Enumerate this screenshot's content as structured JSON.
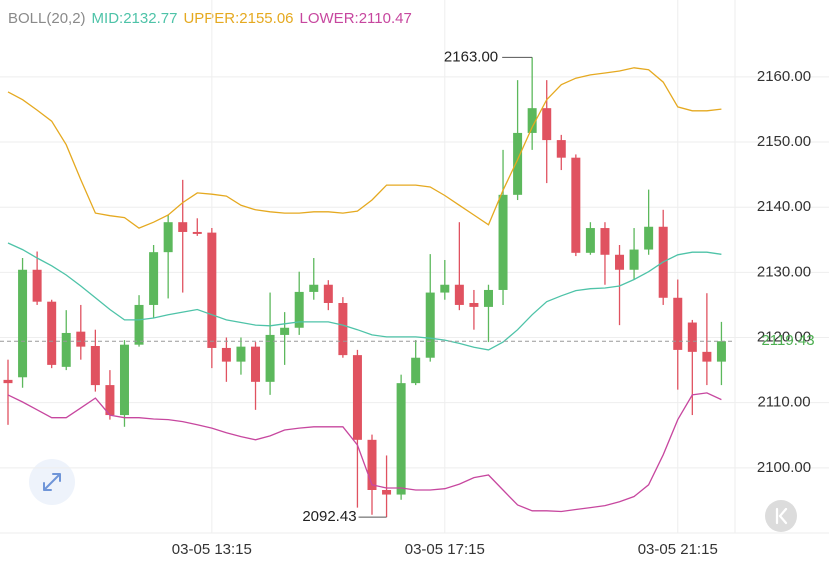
{
  "chart_data": {
    "type": "candlestick",
    "indicator": {
      "title": "BOLL(20,2)",
      "series": [
        {
          "name": "MID:2132.77",
          "color": "#4ec3a8",
          "values": [
            2134.5,
            2133.5,
            2132.2,
            2131.0,
            2129.6,
            2127.9,
            2126.1,
            2124.3,
            2122.7,
            2122.7,
            2123.0,
            2123.5,
            2123.9,
            2124.3,
            2123.5,
            2122.7,
            2122.3,
            2121.9,
            2121.8,
            2122.1,
            2122.4,
            2122.4,
            2122.4,
            2121.9,
            2121.2,
            2120.4,
            2120.1,
            2120.1,
            2120.1,
            2119.9,
            2119.6,
            2119.1,
            2118.5,
            2118.1,
            2119.3,
            2121.2,
            2123.5,
            2125.5,
            2126.4,
            2127.2,
            2127.5,
            2127.6,
            2127.9,
            2128.9,
            2130.1,
            2131.6,
            2132.7,
            2133.1,
            2133.1,
            2132.77
          ]
        },
        {
          "name": "UPPER:2155.06",
          "color": "#e5a920",
          "values": [
            2157.7,
            2156.5,
            2154.9,
            2153.2,
            2149.6,
            2144.2,
            2139.1,
            2138.7,
            2138.4,
            2136.8,
            2137.7,
            2138.8,
            2140.7,
            2142.2,
            2142.0,
            2141.7,
            2140.3,
            2139.6,
            2139.3,
            2139.1,
            2139.1,
            2139.3,
            2139.3,
            2139.1,
            2139.4,
            2141.1,
            2143.4,
            2143.4,
            2143.4,
            2143.1,
            2141.8,
            2140.3,
            2138.8,
            2137.3,
            2142.6,
            2147.3,
            2152.3,
            2156.5,
            2158.8,
            2159.8,
            2160.3,
            2160.6,
            2160.9,
            2161.4,
            2161.1,
            2159.2,
            2155.4,
            2154.8,
            2154.8,
            2155.06
          ]
        },
        {
          "name": "LOWER:2110.47",
          "color": "#c7479f",
          "values": [
            2111.2,
            2110.1,
            2108.9,
            2107.7,
            2107.7,
            2109.2,
            2110.7,
            2108.1,
            2107.7,
            2107.7,
            2107.5,
            2107.4,
            2107.1,
            2106.6,
            2106.1,
            2105.4,
            2104.8,
            2104.3,
            2104.9,
            2105.8,
            2106.1,
            2106.3,
            2106.3,
            2106.3,
            2103.5,
            2097.4,
            2096.9,
            2096.9,
            2096.6,
            2096.6,
            2096.8,
            2097.5,
            2098.5,
            2098.9,
            2096.6,
            2094.3,
            2093.4,
            2093.4,
            2093.3,
            2093.6,
            2093.9,
            2094.2,
            2094.8,
            2095.6,
            2097.4,
            2102.0,
            2107.4,
            2111.2,
            2111.5,
            2110.47
          ]
        }
      ]
    },
    "categories": [
      null,
      null,
      null,
      null,
      null,
      null,
      null,
      null,
      null,
      null,
      null,
      null,
      null,
      null,
      "03-05 13:15",
      null,
      null,
      null,
      null,
      null,
      null,
      null,
      null,
      null,
      null,
      null,
      null,
      null,
      null,
      null,
      "03-05 17:15",
      null,
      null,
      null,
      null,
      null,
      null,
      null,
      null,
      null,
      null,
      null,
      null,
      null,
      null,
      null,
      "03-05 21:15",
      null,
      null,
      null
    ],
    "open": [
      2113.5,
      2113.9,
      2130.4,
      2125.5,
      2115.5,
      2120.9,
      2118.7,
      2112.7,
      2108.1,
      2118.9,
      2125.0,
      2133.1,
      2137.7,
      2136.2,
      2136.1,
      2118.4,
      2116.3,
      2118.6,
      2113.2,
      2120.4,
      2121.5,
      2127.0,
      2128.1,
      2125.3,
      2117.3,
      2104.3,
      2096.6,
      2095.9,
      2113.0,
      2116.9,
      2126.9,
      2128.1,
      2125.3,
      2124.7,
      2127.3,
      2141.9,
      2151.4,
      2155.2,
      2150.3,
      2147.6,
      2133.0,
      2136.8,
      2132.7,
      2130.4,
      2133.5,
      2137.0,
      2126.1,
      2122.3,
      2117.8,
      2116.3
    ],
    "high": [
      2116.6,
      2132.2,
      2133.2,
      2125.8,
      2124.2,
      2125.0,
      2121.2,
      2115.0,
      2119.6,
      2126.5,
      2134.2,
      2138.8,
      2144.2,
      2138.3,
      2136.8,
      2120.0,
      2120.0,
      2119.3,
      2126.9,
      2123.9,
      2130.1,
      2132.2,
      2128.8,
      2126.2,
      2118.1,
      2105.1,
      2101.9,
      2114.3,
      2119.6,
      2132.8,
      2131.9,
      2137.7,
      2127.3,
      2128.1,
      2148.8,
      2159.5,
      2163.0,
      2159.5,
      2151.1,
      2148.1,
      2137.7,
      2137.7,
      2134.2,
      2136.8,
      2142.7,
      2139.6,
      2128.9,
      2122.7,
      2126.8,
      2122.4
    ],
    "low": [
      2106.6,
      2112.3,
      2125.0,
      2115.3,
      2115.0,
      2116.6,
      2111.7,
      2107.4,
      2106.3,
      2118.6,
      2123.0,
      2126.0,
      2126.9,
      2135.6,
      2115.3,
      2113.2,
      2114.3,
      2108.9,
      2111.2,
      2115.8,
      2120.4,
      2125.8,
      2124.2,
      2116.9,
      2093.9,
      2092.8,
      2092.43,
      2095.1,
      2112.7,
      2116.3,
      2125.8,
      2124.2,
      2121.2,
      2119.3,
      2125.0,
      2141.1,
      2148.8,
      2143.7,
      2145.7,
      2132.5,
      2132.7,
      2128.1,
      2121.9,
      2128.9,
      2132.7,
      2125.0,
      2112.0,
      2108.1,
      2112.7,
      2112.7
    ],
    "close": [
      2113.0,
      2130.4,
      2125.5,
      2115.8,
      2120.7,
      2118.6,
      2112.7,
      2108.1,
      2118.9,
      2125.0,
      2133.1,
      2137.7,
      2136.2,
      2135.9,
      2118.4,
      2116.3,
      2118.6,
      2113.2,
      2120.4,
      2121.5,
      2127.0,
      2128.1,
      2125.3,
      2117.3,
      2104.3,
      2096.6,
      2095.9,
      2113.0,
      2116.9,
      2126.9,
      2128.1,
      2125.0,
      2124.7,
      2127.3,
      2141.9,
      2151.4,
      2155.2,
      2150.3,
      2147.6,
      2133.0,
      2136.8,
      2132.7,
      2130.4,
      2133.5,
      2137.0,
      2126.1,
      2118.1,
      2117.8,
      2116.3,
      2119.43
    ],
    "up_color": "#5cb85c",
    "down_color": "#e05260",
    "ylim": [
      2090,
      2171.8
    ],
    "yticks": [
      {
        "value": 2100,
        "label": "2100.00"
      },
      {
        "value": 2110,
        "label": "2110.00"
      },
      {
        "value": 2120,
        "label": "2120.00"
      },
      {
        "value": 2130,
        "label": "2130.00"
      },
      {
        "value": 2140,
        "label": "2140.00"
      },
      {
        "value": 2150,
        "label": "2150.00"
      },
      {
        "value": 2160,
        "label": "2160.00"
      }
    ],
    "current_price": 2119.43,
    "high_label": {
      "value": 2163,
      "label": "2163.00"
    },
    "low_label": 2092.43,
    "grid": true
  }
}
